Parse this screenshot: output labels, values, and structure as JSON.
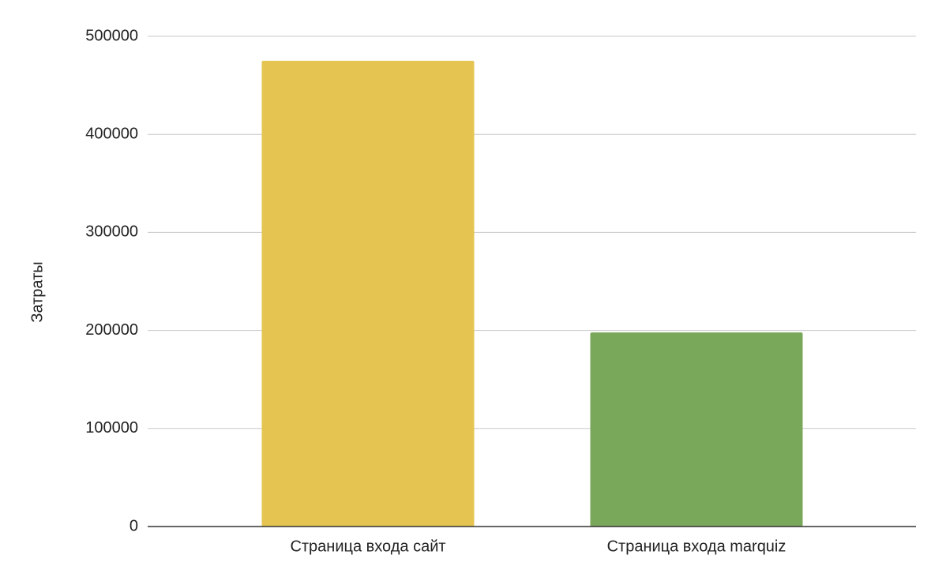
{
  "chart_data": {
    "type": "bar",
    "y_label": "Затраты",
    "categories": [
      "Страница входа сайт",
      "Страница входа marquiz"
    ],
    "values": [
      475000,
      198000
    ],
    "colors": [
      "#e6c452",
      "#7aa85b"
    ],
    "ylim": [
      0,
      500000
    ],
    "yticks": [
      0,
      100000,
      200000,
      300000,
      400000,
      500000
    ],
    "grid": true
  }
}
